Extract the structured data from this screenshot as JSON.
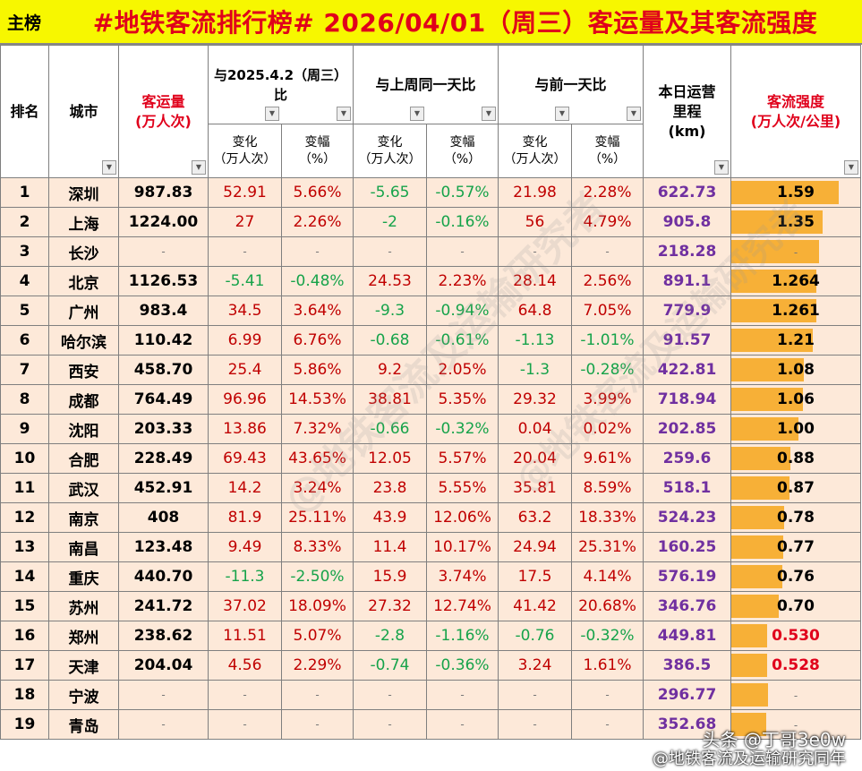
{
  "header": {
    "tag": "主榜",
    "title": "#地铁客流排行榜# 2026/04/01（周三）客运量及其客流强度"
  },
  "columns": {
    "rank": "排名",
    "city": "城市",
    "pax": "客运量\n(万人次)",
    "yoy": "与2025.4.2（周三）\n比",
    "wow": "与上周同一天比",
    "dod": "与前一天比",
    "km": "本日运营\n里程\n(km)",
    "intensity": "客流强度\n(万人次/公里)",
    "change": "变化\n（万人次）",
    "pct": "变幅\n（%）"
  },
  "rows": [
    {
      "rank": "1",
      "city": "深圳",
      "pax": "987.83",
      "yc": "52.91",
      "yp": "5.66%",
      "wc": "-5.65",
      "wp": "-0.57%",
      "dc": "21.98",
      "dp": "2.28%",
      "km": "622.73",
      "int": "1.59",
      "level": 1.59
    },
    {
      "rank": "2",
      "city": "上海",
      "pax": "1224.00",
      "yc": "27",
      "yp": "2.26%",
      "wc": "-2",
      "wp": "-0.16%",
      "dc": "56",
      "dp": "4.79%",
      "km": "905.8",
      "int": "1.35",
      "level": 1.35
    },
    {
      "rank": "3",
      "city": "长沙",
      "pax": "-",
      "yc": "-",
      "yp": "-",
      "wc": "-",
      "wp": "-",
      "dc": "-",
      "dp": "-",
      "km": "218.28",
      "int": "-",
      "level": 1.3
    },
    {
      "rank": "4",
      "city": "北京",
      "pax": "1126.53",
      "yc": "-5.41",
      "yp": "-0.48%",
      "wc": "24.53",
      "wp": "2.23%",
      "dc": "28.14",
      "dp": "2.56%",
      "km": "891.1",
      "int": "1.264",
      "level": 1.264
    },
    {
      "rank": "5",
      "city": "广州",
      "pax": "983.4",
      "yc": "34.5",
      "yp": "3.64%",
      "wc": "-9.3",
      "wp": "-0.94%",
      "dc": "64.8",
      "dp": "7.05%",
      "km": "779.9",
      "int": "1.261",
      "level": 1.261
    },
    {
      "rank": "6",
      "city": "哈尔滨",
      "pax": "110.42",
      "yc": "6.99",
      "yp": "6.76%",
      "wc": "-0.68",
      "wp": "-0.61%",
      "dc": "-1.13",
      "dp": "-1.01%",
      "km": "91.57",
      "int": "1.21",
      "level": 1.21
    },
    {
      "rank": "7",
      "city": "西安",
      "pax": "458.70",
      "yc": "25.4",
      "yp": "5.86%",
      "wc": "9.2",
      "wp": "2.05%",
      "dc": "-1.3",
      "dp": "-0.28%",
      "km": "422.81",
      "int": "1.08",
      "level": 1.08
    },
    {
      "rank": "8",
      "city": "成都",
      "pax": "764.49",
      "yc": "96.96",
      "yp": "14.53%",
      "wc": "38.81",
      "wp": "5.35%",
      "dc": "29.32",
      "dp": "3.99%",
      "km": "718.94",
      "int": "1.06",
      "level": 1.06
    },
    {
      "rank": "9",
      "city": "沈阳",
      "pax": "203.33",
      "yc": "13.86",
      "yp": "7.32%",
      "wc": "-0.66",
      "wp": "-0.32%",
      "dc": "0.04",
      "dp": "0.02%",
      "km": "202.85",
      "int": "1.00",
      "level": 1.0
    },
    {
      "rank": "10",
      "city": "合肥",
      "pax": "228.49",
      "yc": "69.43",
      "yp": "43.65%",
      "wc": "12.05",
      "wp": "5.57%",
      "dc": "20.04",
      "dp": "9.61%",
      "km": "259.6",
      "int": "0.88",
      "level": 0.88
    },
    {
      "rank": "11",
      "city": "武汉",
      "pax": "452.91",
      "yc": "14.2",
      "yp": "3.24%",
      "wc": "23.8",
      "wp": "5.55%",
      "dc": "35.81",
      "dp": "8.59%",
      "km": "518.1",
      "int": "0.87",
      "level": 0.87
    },
    {
      "rank": "12",
      "city": "南京",
      "pax": "408",
      "yc": "81.9",
      "yp": "25.11%",
      "wc": "43.9",
      "wp": "12.06%",
      "dc": "63.2",
      "dp": "18.33%",
      "km": "524.23",
      "int": "0.78",
      "level": 0.78
    },
    {
      "rank": "13",
      "city": "南昌",
      "pax": "123.48",
      "yc": "9.49",
      "yp": "8.33%",
      "wc": "11.4",
      "wp": "10.17%",
      "dc": "24.94",
      "dp": "25.31%",
      "km": "160.25",
      "int": "0.77",
      "level": 0.77
    },
    {
      "rank": "14",
      "city": "重庆",
      "pax": "440.70",
      "yc": "-11.3",
      "yp": "-2.50%",
      "wc": "15.9",
      "wp": "3.74%",
      "dc": "17.5",
      "dp": "4.14%",
      "km": "576.19",
      "int": "0.76",
      "level": 0.76
    },
    {
      "rank": "15",
      "city": "苏州",
      "pax": "241.72",
      "yc": "37.02",
      "yp": "18.09%",
      "wc": "27.32",
      "wp": "12.74%",
      "dc": "41.42",
      "dp": "20.68%",
      "km": "346.76",
      "int": "0.70",
      "level": 0.7
    },
    {
      "rank": "16",
      "city": "郑州",
      "pax": "238.62",
      "yc": "11.51",
      "yp": "5.07%",
      "wc": "-2.8",
      "wp": "-1.16%",
      "dc": "-0.76",
      "dp": "-0.32%",
      "km": "449.81",
      "int": "0.530",
      "level": 0.53
    },
    {
      "rank": "17",
      "city": "天津",
      "pax": "204.04",
      "yc": "4.56",
      "yp": "2.29%",
      "wc": "-0.74",
      "wp": "-0.36%",
      "dc": "3.24",
      "dp": "1.61%",
      "km": "386.5",
      "int": "0.528",
      "level": 0.528
    },
    {
      "rank": "18",
      "city": "宁波",
      "pax": "-",
      "yc": "-",
      "yp": "-",
      "wc": "-",
      "wp": "-",
      "dc": "-",
      "dp": "-",
      "km": "296.77",
      "int": "-",
      "level": 0.54
    },
    {
      "rank": "19",
      "city": "青岛",
      "pax": "-",
      "yc": "-",
      "yp": "-",
      "wc": "-",
      "wp": "-",
      "dc": "-",
      "dp": "-",
      "km": "352.68",
      "int": "-",
      "level": 0.52
    }
  ],
  "watermark": "@地铁客流及运输研究者",
  "footer": {
    "line1": "头条 @丁哥3e0w",
    "line2": "@地铁客流及运输研究同年"
  },
  "colors": {
    "title_bg": "#f7f700",
    "title_text": "#e0001b",
    "row_bg": "#fde9d9",
    "bar": "#f7b037",
    "increase": "#c00000",
    "decrease": "#16a34a",
    "mileage": "#7030a0"
  }
}
